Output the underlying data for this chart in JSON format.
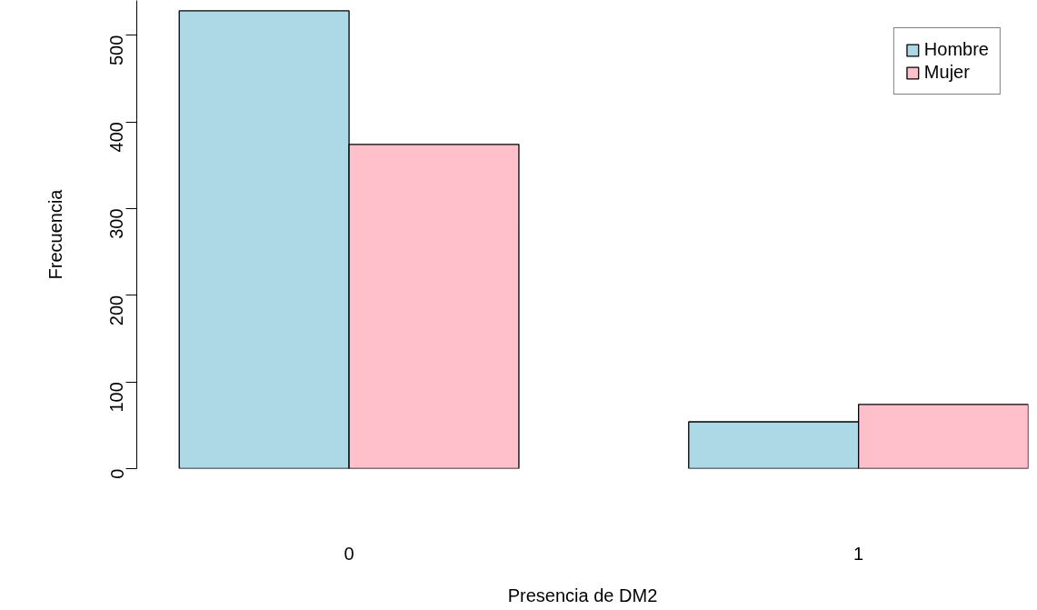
{
  "chart_data": {
    "type": "bar",
    "xlabel": "Presencia de DM2",
    "ylabel": "Frecuencia",
    "categories": [
      "0",
      "1"
    ],
    "series": [
      {
        "name": "Hombre",
        "color": "#add8e6",
        "values": [
          528,
          54
        ]
      },
      {
        "name": "Mujer",
        "color": "#ffc0cb",
        "values": [
          374,
          74
        ]
      }
    ],
    "ylim": [
      0,
      540
    ],
    "yticks": [
      0,
      100,
      200,
      300,
      400,
      500
    ],
    "grid": false,
    "legend": "top right"
  }
}
